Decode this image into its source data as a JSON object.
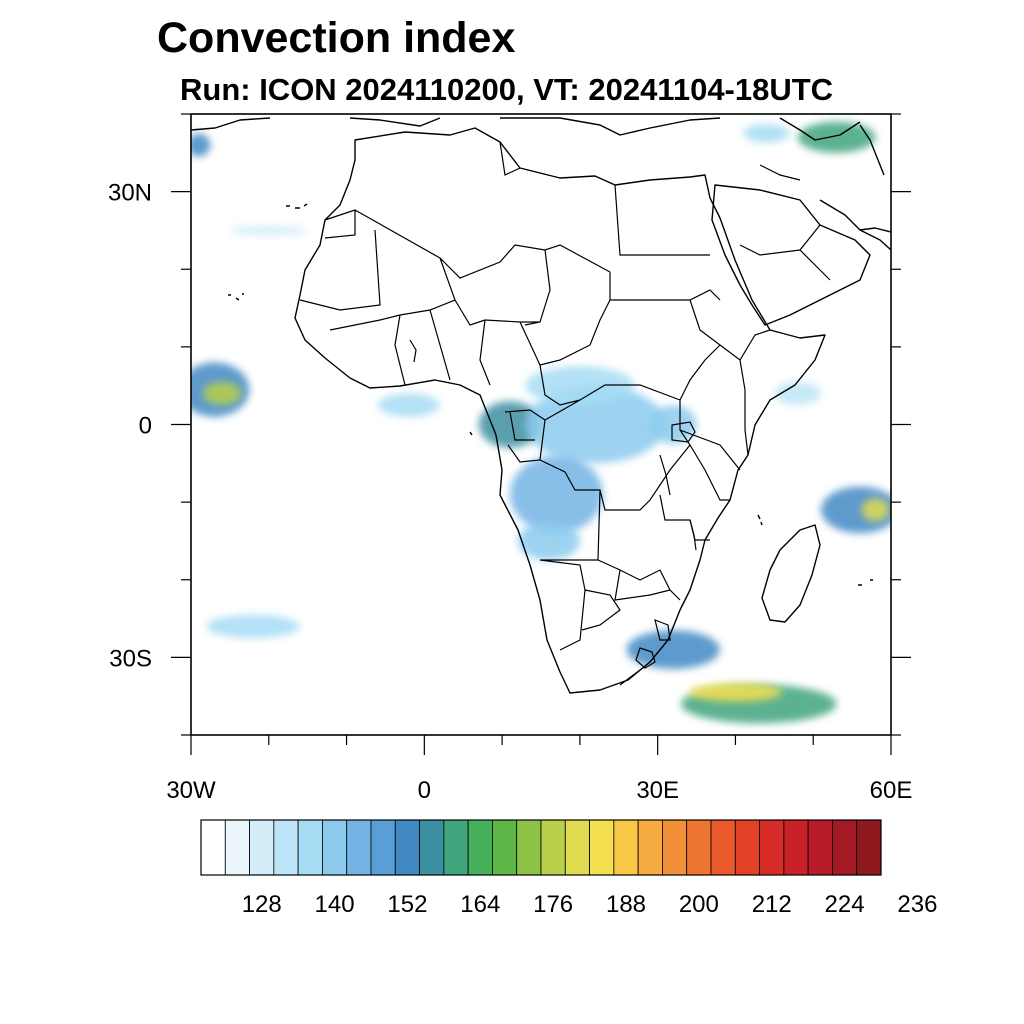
{
  "title": "Convection index",
  "subtitle": "Run: ICON 2024110200,  VT: 20241104-18UTC",
  "map": {
    "projection": "cylindrical equidistant",
    "lon_range": [
      -30,
      60
    ],
    "lat_range": [
      -40,
      40
    ],
    "lat_ticks": [
      {
        "lat": 30,
        "label": "30N"
      },
      {
        "lat": 0,
        "label": "0"
      },
      {
        "lat": -30,
        "label": "30S"
      }
    ],
    "lon_ticks": [
      {
        "lon": -30,
        "label": "30W"
      },
      {
        "lon": 0,
        "label": "0"
      },
      {
        "lon": 30,
        "label": "30E"
      },
      {
        "lon": 60,
        "label": "60E"
      }
    ],
    "coast_color": "#000000",
    "convection_areas": [
      {
        "region": "tropical-atlantic-west",
        "lon": -27,
        "lat": 4.5,
        "rx": 4.5,
        "ry": 3.5,
        "level": 150
      },
      {
        "region": "tropical-atlantic-core",
        "lon": -26,
        "lat": 4,
        "rx": 2.5,
        "ry": 1.5,
        "level": 175
      },
      {
        "region": "gulf-of-guinea",
        "lon": -2,
        "lat": 2.5,
        "rx": 4,
        "ry": 1.5,
        "level": 135
      },
      {
        "region": "cameroon-gabon",
        "lon": 11,
        "lat": 0,
        "rx": 4,
        "ry": 3,
        "level": 155
      },
      {
        "region": "congo-basin",
        "lon": 22,
        "lat": 0,
        "rx": 9,
        "ry": 5,
        "level": 140
      },
      {
        "region": "central-africa-north",
        "lon": 20,
        "lat": 5,
        "rx": 7,
        "ry": 2.5,
        "level": 135
      },
      {
        "region": "angola-drc",
        "lon": 17,
        "lat": -9,
        "rx": 6,
        "ry": 5,
        "level": 145
      },
      {
        "region": "angola-south",
        "lon": 16,
        "lat": -15,
        "rx": 4,
        "ry": 2.5,
        "level": 140
      },
      {
        "region": "lake-victoria",
        "lon": 32,
        "lat": 0,
        "rx": 3,
        "ry": 2.5,
        "level": 140
      },
      {
        "region": "southern-africa-band",
        "lon": 32,
        "lat": -29,
        "rx": 6,
        "ry": 2.5,
        "level": 150
      },
      {
        "region": "mozambique-channel-south",
        "lon": 43,
        "lat": -36,
        "rx": 10,
        "ry": 2.5,
        "level": 160
      },
      {
        "region": "southern-band-core",
        "lon": 40,
        "lat": -34.5,
        "rx": 6,
        "ry": 1.2,
        "level": 185
      },
      {
        "region": "indian-ocean-east",
        "lon": 56,
        "lat": -11,
        "rx": 5,
        "ry": 3,
        "level": 150
      },
      {
        "region": "indian-ocean-core",
        "lon": 58,
        "lat": -11,
        "rx": 1.8,
        "ry": 1.5,
        "level": 180
      },
      {
        "region": "red-sea-east",
        "lon": 48,
        "lat": 4,
        "rx": 3,
        "ry": 1.5,
        "level": 130
      },
      {
        "region": "persian-gulf",
        "lon": 53,
        "lat": 37,
        "rx": 5,
        "ry": 2,
        "level": 160
      },
      {
        "region": "mediterranean-east",
        "lon": 44,
        "lat": 37.5,
        "rx": 3,
        "ry": 1.2,
        "level": 135
      },
      {
        "region": "atlantic-north-west",
        "lon": -29,
        "lat": 36,
        "rx": 1.5,
        "ry": 1.5,
        "level": 150
      },
      {
        "region": "atlantic-streak",
        "lon": -20,
        "lat": 25,
        "rx": 5,
        "ry": 0.7,
        "level": 128
      },
      {
        "region": "south-atlantic-streak",
        "lon": -22,
        "lat": -26,
        "rx": 6,
        "ry": 1.5,
        "level": 135
      }
    ]
  },
  "colorbar": {
    "colors": [
      "#ffffff",
      "#eaf6fc",
      "#d4eef9",
      "#bde5f7",
      "#a6dcf4",
      "#8ccbee",
      "#73b4e5",
      "#5a9ed8",
      "#4289c4",
      "#3c8fa0",
      "#40a47d",
      "#46b15a",
      "#5cb648",
      "#8cc346",
      "#b8d04a",
      "#e0dc52",
      "#f5e14f",
      "#f8c946",
      "#f6ac40",
      "#f29039",
      "#ee7632",
      "#ea5a2c",
      "#e24127",
      "#d82c28",
      "#c9212a",
      "#b71b27",
      "#a41a24",
      "#8e1a1f"
    ],
    "tick_labels": [
      "128",
      "140",
      "152",
      "164",
      "176",
      "188",
      "200",
      "212",
      "224",
      "236"
    ],
    "tick_values": [
      128,
      140,
      152,
      164,
      176,
      188,
      200,
      212,
      224,
      236
    ],
    "start_value": 122,
    "step": 4
  }
}
